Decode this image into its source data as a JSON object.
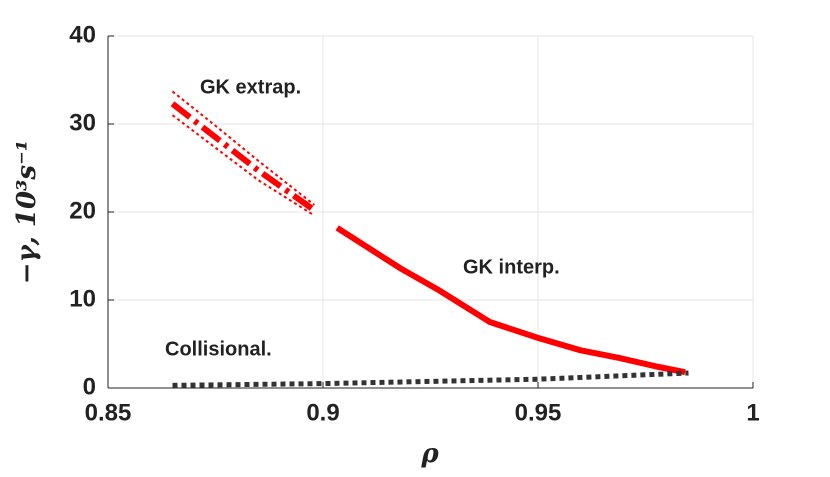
{
  "chart_data": {
    "type": "line",
    "xlabel": "ρ",
    "ylabel": "−γ, 10³s⁻¹",
    "xlim": [
      0.85,
      1
    ],
    "ylim": [
      0,
      40
    ],
    "xticks": [
      0.85,
      0.9,
      0.95,
      1
    ],
    "yticks": [
      0,
      10,
      20,
      30,
      40
    ],
    "grid": true,
    "series": [
      {
        "name": "GK extrap.",
        "color": "#ff0000",
        "style": "dashdot",
        "x": [
          0.865,
          0.875,
          0.885,
          0.898
        ],
        "values": [
          32.3,
          28.5,
          24.7,
          20.2
        ],
        "upper": [
          33.7,
          29.8,
          25.8,
          20.8
        ],
        "lower": [
          31.0,
          27.3,
          23.6,
          19.6
        ]
      },
      {
        "name": "GK interp.",
        "color": "#ff0000",
        "style": "solid",
        "x": [
          0.9033,
          0.918,
          0.927,
          0.9388,
          0.95,
          0.9598,
          0.969,
          0.978,
          0.9842
        ],
        "values": [
          18.2,
          13.6,
          11.1,
          7.5,
          5.7,
          4.3,
          3.4,
          2.4,
          1.8
        ]
      },
      {
        "name": "Collisional.",
        "color": "#333333",
        "style": "dotted",
        "x": [
          0.865,
          0.9,
          0.95,
          0.985
        ],
        "values": [
          0.3,
          0.5,
          1.0,
          1.7
        ]
      }
    ]
  }
}
